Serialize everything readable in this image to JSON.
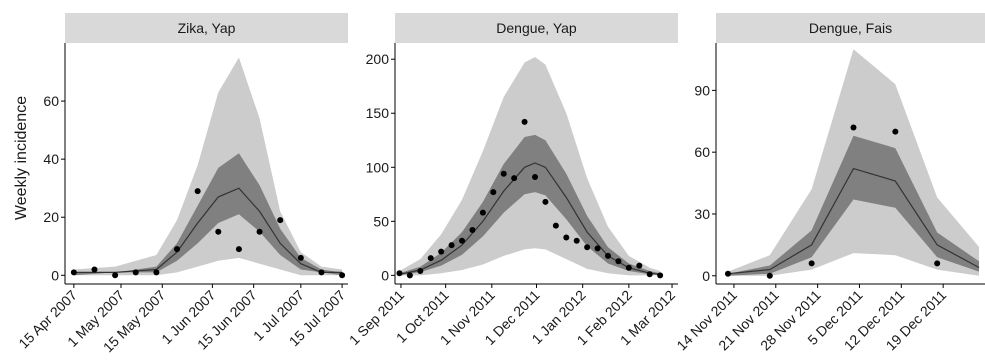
{
  "ylabel": "Weekly incidence",
  "colors": {
    "outer_band": "#cccccc",
    "inner_band": "#808080",
    "line": "#333333",
    "points": "#000000",
    "strip": "#d9d9d9"
  },
  "chart_data": [
    {
      "type": "line",
      "title": "Zika, Yap",
      "ylabel": "Weekly incidence",
      "ylim": [
        -3,
        80
      ],
      "xlim_dates": [
        "2007-04-12",
        "2007-07-17"
      ],
      "y_ticks": [
        0,
        20,
        40,
        60
      ],
      "x_ticks": [
        {
          "date": "2007-04-15",
          "label": "15 Apr 2007"
        },
        {
          "date": "2007-05-01",
          "label": "1 May 2007"
        },
        {
          "date": "2007-05-15",
          "label": "15 May 2007"
        },
        {
          "date": "2007-06-01",
          "label": "1 Jun 2007"
        },
        {
          "date": "2007-06-15",
          "label": "15 Jun 2007"
        },
        {
          "date": "2007-07-01",
          "label": "1 Jul 2007"
        },
        {
          "date": "2007-07-15",
          "label": "15 Jul 2007"
        }
      ],
      "observed": [
        {
          "date": "2007-04-15",
          "y": 1
        },
        {
          "date": "2007-04-22",
          "y": 2
        },
        {
          "date": "2007-04-29",
          "y": 0
        },
        {
          "date": "2007-05-06",
          "y": 1
        },
        {
          "date": "2007-05-13",
          "y": 1
        },
        {
          "date": "2007-05-20",
          "y": 9
        },
        {
          "date": "2007-05-27",
          "y": 29
        },
        {
          "date": "2007-06-03",
          "y": 15
        },
        {
          "date": "2007-06-10",
          "y": 9
        },
        {
          "date": "2007-06-17",
          "y": 15
        },
        {
          "date": "2007-06-24",
          "y": 19
        },
        {
          "date": "2007-07-01",
          "y": 6
        },
        {
          "date": "2007-07-08",
          "y": 1
        },
        {
          "date": "2007-07-15",
          "y": 0
        }
      ],
      "median": [
        {
          "date": "2007-04-15",
          "y": 1
        },
        {
          "date": "2007-04-29",
          "y": 1
        },
        {
          "date": "2007-05-13",
          "y": 2
        },
        {
          "date": "2007-05-20",
          "y": 8
        },
        {
          "date": "2007-05-27",
          "y": 18
        },
        {
          "date": "2007-06-03",
          "y": 27
        },
        {
          "date": "2007-06-10",
          "y": 30
        },
        {
          "date": "2007-06-17",
          "y": 22
        },
        {
          "date": "2007-06-24",
          "y": 11
        },
        {
          "date": "2007-07-01",
          "y": 4
        },
        {
          "date": "2007-07-08",
          "y": 1
        },
        {
          "date": "2007-07-15",
          "y": 1
        }
      ],
      "inner_band": [
        {
          "date": "2007-04-15",
          "lo": 0,
          "hi": 1
        },
        {
          "date": "2007-04-29",
          "lo": 1,
          "hi": 1
        },
        {
          "date": "2007-05-13",
          "lo": 1,
          "hi": 3
        },
        {
          "date": "2007-05-20",
          "lo": 5,
          "hi": 11
        },
        {
          "date": "2007-05-27",
          "lo": 11,
          "hi": 24
        },
        {
          "date": "2007-06-03",
          "lo": 18,
          "hi": 37
        },
        {
          "date": "2007-06-10",
          "lo": 21,
          "hi": 42
        },
        {
          "date": "2007-06-17",
          "lo": 15,
          "hi": 31
        },
        {
          "date": "2007-06-24",
          "lo": 7,
          "hi": 16
        },
        {
          "date": "2007-07-01",
          "lo": 2,
          "hi": 6
        },
        {
          "date": "2007-07-08",
          "lo": 1,
          "hi": 2
        },
        {
          "date": "2007-07-15",
          "lo": 0,
          "hi": 1
        }
      ],
      "outer_band": [
        {
          "date": "2007-04-15",
          "lo": 0,
          "hi": 2
        },
        {
          "date": "2007-04-29",
          "lo": 0,
          "hi": 3
        },
        {
          "date": "2007-05-13",
          "lo": 0,
          "hi": 7
        },
        {
          "date": "2007-05-20",
          "lo": 1,
          "hi": 19
        },
        {
          "date": "2007-05-27",
          "lo": 3,
          "hi": 38
        },
        {
          "date": "2007-06-03",
          "lo": 5,
          "hi": 63
        },
        {
          "date": "2007-06-10",
          "lo": 6,
          "hi": 75
        },
        {
          "date": "2007-06-17",
          "lo": 4,
          "hi": 54
        },
        {
          "date": "2007-06-24",
          "lo": 2,
          "hi": 22
        },
        {
          "date": "2007-07-01",
          "lo": 0,
          "hi": 8
        },
        {
          "date": "2007-07-08",
          "lo": 0,
          "hi": 3
        },
        {
          "date": "2007-07-15",
          "lo": 0,
          "hi": 2
        }
      ]
    },
    {
      "type": "line",
      "title": "Dengue, Yap",
      "ylim": [
        -8,
        215
      ],
      "xlim_dates": [
        "2011-08-28",
        "2012-03-05"
      ],
      "y_ticks": [
        0,
        50,
        100,
        150,
        200
      ],
      "x_ticks": [
        {
          "date": "2011-09-01",
          "label": "1 Sep 2011"
        },
        {
          "date": "2011-10-01",
          "label": "1 Oct 2011"
        },
        {
          "date": "2011-11-01",
          "label": "1 Nov 2011"
        },
        {
          "date": "2011-12-01",
          "label": "1 Dec 2011"
        },
        {
          "date": "2012-01-01",
          "label": "1 Jan 2012"
        },
        {
          "date": "2012-02-01",
          "label": "1 Feb 2012"
        },
        {
          "date": "2012-03-01",
          "label": "1 Mar 2012"
        }
      ],
      "observed": [
        {
          "date": "2011-08-31",
          "y": 2
        },
        {
          "date": "2011-09-07",
          "y": 0
        },
        {
          "date": "2011-09-14",
          "y": 4
        },
        {
          "date": "2011-09-21",
          "y": 16
        },
        {
          "date": "2011-09-28",
          "y": 22
        },
        {
          "date": "2011-10-05",
          "y": 28
        },
        {
          "date": "2011-10-12",
          "y": 32
        },
        {
          "date": "2011-10-19",
          "y": 42
        },
        {
          "date": "2011-10-26",
          "y": 58
        },
        {
          "date": "2011-11-02",
          "y": 77
        },
        {
          "date": "2011-11-09",
          "y": 94
        },
        {
          "date": "2011-11-16",
          "y": 90
        },
        {
          "date": "2011-11-23",
          "y": 142
        },
        {
          "date": "2011-11-30",
          "y": 91
        },
        {
          "date": "2011-12-07",
          "y": 68
        },
        {
          "date": "2011-12-14",
          "y": 46
        },
        {
          "date": "2011-12-21",
          "y": 35
        },
        {
          "date": "2011-12-28",
          "y": 32
        },
        {
          "date": "2012-01-04",
          "y": 26
        },
        {
          "date": "2012-01-11",
          "y": 25
        },
        {
          "date": "2012-01-18",
          "y": 18
        },
        {
          "date": "2012-01-25",
          "y": 13
        },
        {
          "date": "2012-02-01",
          "y": 7
        },
        {
          "date": "2012-02-08",
          "y": 9
        },
        {
          "date": "2012-02-15",
          "y": 1
        },
        {
          "date": "2012-02-22",
          "y": 0
        }
      ],
      "median": [
        {
          "date": "2011-08-31",
          "y": 1
        },
        {
          "date": "2011-09-14",
          "y": 5
        },
        {
          "date": "2011-09-28",
          "y": 14
        },
        {
          "date": "2011-10-12",
          "y": 28
        },
        {
          "date": "2011-10-26",
          "y": 50
        },
        {
          "date": "2011-11-09",
          "y": 78
        },
        {
          "date": "2011-11-23",
          "y": 100
        },
        {
          "date": "2011-11-30",
          "y": 104
        },
        {
          "date": "2011-12-07",
          "y": 100
        },
        {
          "date": "2011-12-21",
          "y": 72
        },
        {
          "date": "2012-01-04",
          "y": 40
        },
        {
          "date": "2012-01-18",
          "y": 18
        },
        {
          "date": "2012-02-01",
          "y": 7
        },
        {
          "date": "2012-02-15",
          "y": 2
        },
        {
          "date": "2012-02-22",
          "y": 1
        }
      ],
      "inner_band": [
        {
          "date": "2011-08-31",
          "lo": 0,
          "hi": 2
        },
        {
          "date": "2011-09-14",
          "lo": 3,
          "hi": 8
        },
        {
          "date": "2011-09-28",
          "lo": 9,
          "hi": 21
        },
        {
          "date": "2011-10-12",
          "lo": 19,
          "hi": 40
        },
        {
          "date": "2011-10-26",
          "lo": 36,
          "hi": 68
        },
        {
          "date": "2011-11-09",
          "lo": 58,
          "hi": 103
        },
        {
          "date": "2011-11-23",
          "lo": 75,
          "hi": 128
        },
        {
          "date": "2011-11-30",
          "lo": 77,
          "hi": 130
        },
        {
          "date": "2011-12-07",
          "lo": 74,
          "hi": 125
        },
        {
          "date": "2011-12-21",
          "lo": 52,
          "hi": 94
        },
        {
          "date": "2012-01-04",
          "lo": 27,
          "hi": 55
        },
        {
          "date": "2012-01-18",
          "lo": 11,
          "hi": 26
        },
        {
          "date": "2012-02-01",
          "lo": 4,
          "hi": 11
        },
        {
          "date": "2012-02-15",
          "lo": 1,
          "hi": 4
        },
        {
          "date": "2012-02-22",
          "lo": 0,
          "hi": 2
        }
      ],
      "outer_band": [
        {
          "date": "2011-08-31",
          "lo": 0,
          "hi": 4
        },
        {
          "date": "2011-09-14",
          "lo": 0,
          "hi": 15
        },
        {
          "date": "2011-09-28",
          "lo": 2,
          "hi": 38
        },
        {
          "date": "2011-10-12",
          "lo": 5,
          "hi": 70
        },
        {
          "date": "2011-10-26",
          "lo": 10,
          "hi": 115
        },
        {
          "date": "2011-11-09",
          "lo": 18,
          "hi": 165
        },
        {
          "date": "2011-11-23",
          "lo": 24,
          "hi": 197
        },
        {
          "date": "2011-11-30",
          "lo": 25,
          "hi": 202
        },
        {
          "date": "2011-12-07",
          "lo": 24,
          "hi": 195
        },
        {
          "date": "2011-12-21",
          "lo": 15,
          "hi": 150
        },
        {
          "date": "2012-01-04",
          "lo": 6,
          "hi": 90
        },
        {
          "date": "2012-01-18",
          "lo": 2,
          "hi": 45
        },
        {
          "date": "2012-02-01",
          "lo": 0,
          "hi": 18
        },
        {
          "date": "2012-02-15",
          "lo": 0,
          "hi": 7
        },
        {
          "date": "2012-02-22",
          "lo": 0,
          "hi": 4
        }
      ]
    },
    {
      "type": "line",
      "title": "Dengue, Fais",
      "ylim": [
        -4,
        113
      ],
      "xlim_dates": [
        "2011-11-11",
        "2011-12-26"
      ],
      "y_ticks": [
        0,
        30,
        60,
        90
      ],
      "x_ticks": [
        {
          "date": "2011-11-14",
          "label": "14 Nov 2011"
        },
        {
          "date": "2011-11-21",
          "label": "21 Nov 2011"
        },
        {
          "date": "2011-11-28",
          "label": "28 Nov 2011"
        },
        {
          "date": "2011-12-05",
          "label": "5 Dec 2011"
        },
        {
          "date": "2011-12-12",
          "label": "12 Dec 2011"
        },
        {
          "date": "2011-12-19",
          "label": "19 Dec 2011"
        }
      ],
      "observed": [
        {
          "date": "2011-11-13",
          "y": 1
        },
        {
          "date": "2011-11-20",
          "y": 0
        },
        {
          "date": "2011-11-27",
          "y": 6
        },
        {
          "date": "2011-12-04",
          "y": 72
        },
        {
          "date": "2011-12-11",
          "y": 70
        },
        {
          "date": "2011-12-18",
          "y": 6
        }
      ],
      "median": [
        {
          "date": "2011-11-13",
          "y": 1
        },
        {
          "date": "2011-11-20",
          "y": 3
        },
        {
          "date": "2011-11-27",
          "y": 15
        },
        {
          "date": "2011-12-04",
          "y": 52
        },
        {
          "date": "2011-12-11",
          "y": 46
        },
        {
          "date": "2011-12-18",
          "y": 15
        },
        {
          "date": "2011-12-25",
          "y": 4
        }
      ],
      "inner_band": [
        {
          "date": "2011-11-13",
          "lo": 0,
          "hi": 1
        },
        {
          "date": "2011-11-20",
          "lo": 1,
          "hi": 5
        },
        {
          "date": "2011-11-27",
          "lo": 9,
          "hi": 22
        },
        {
          "date": "2011-12-04",
          "lo": 37,
          "hi": 68
        },
        {
          "date": "2011-12-11",
          "lo": 33,
          "hi": 62
        },
        {
          "date": "2011-12-18",
          "lo": 9,
          "hi": 21
        },
        {
          "date": "2011-12-25",
          "lo": 2,
          "hi": 7
        }
      ],
      "outer_band": [
        {
          "date": "2011-11-13",
          "lo": 0,
          "hi": 2
        },
        {
          "date": "2011-11-20",
          "lo": 0,
          "hi": 10
        },
        {
          "date": "2011-11-27",
          "lo": 3,
          "hi": 42
        },
        {
          "date": "2011-12-04",
          "lo": 11,
          "hi": 110
        },
        {
          "date": "2011-12-11",
          "lo": 10,
          "hi": 93
        },
        {
          "date": "2011-12-18",
          "lo": 3,
          "hi": 38
        },
        {
          "date": "2011-12-25",
          "lo": 0,
          "hi": 14
        }
      ]
    }
  ]
}
